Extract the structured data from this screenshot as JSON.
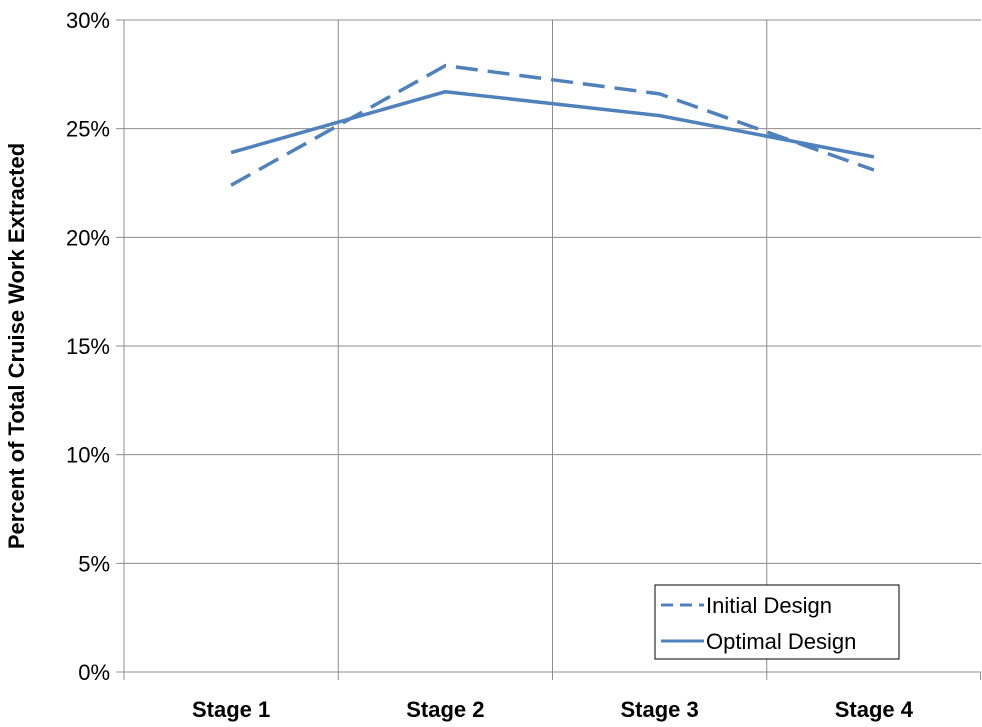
{
  "chart_data": {
    "type": "line",
    "title": "",
    "xlabel": "",
    "ylabel": "Percent of Total Cruise Work Extracted",
    "categories": [
      "Stage 1",
      "Stage 2",
      "Stage 3",
      "Stage 4"
    ],
    "ylim": [
      0,
      30
    ],
    "yticks": [
      0,
      5,
      10,
      15,
      20,
      25,
      30
    ],
    "ytick_labels": [
      "0%",
      "5%",
      "10%",
      "15%",
      "20%",
      "25%",
      "30%"
    ],
    "grid": true,
    "legend_position": "bottom-right",
    "series": [
      {
        "name": "Initial Design",
        "values": [
          22.4,
          27.9,
          26.6,
          23.1
        ],
        "color": "#4f81bd",
        "style": "dashed"
      },
      {
        "name": "Optimal Design",
        "values": [
          23.9,
          26.7,
          25.6,
          23.7
        ],
        "color": "#4f81bd",
        "style": "solid"
      }
    ]
  }
}
